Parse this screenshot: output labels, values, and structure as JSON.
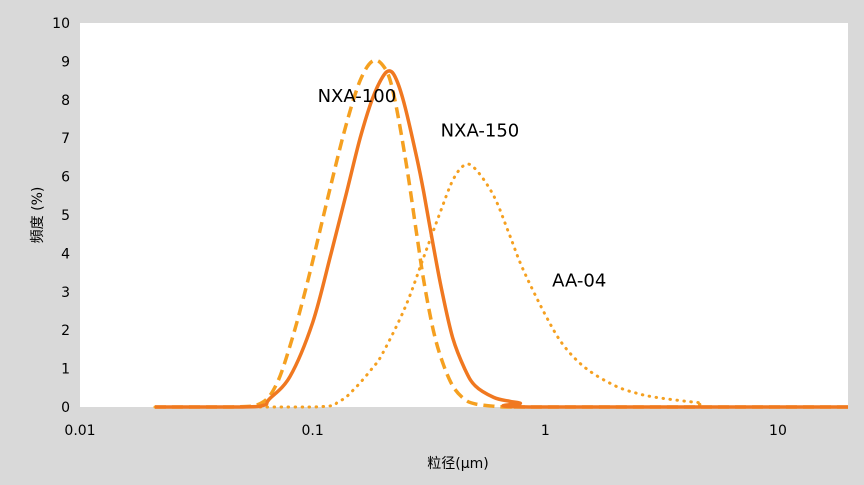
{
  "chart_data": {
    "type": "line",
    "title": "",
    "xlabel": "粒径(μm)",
    "ylabel": "頻度 (%)",
    "x_scale": "log",
    "xlim": [
      0.01,
      20
    ],
    "ylim": [
      0,
      10
    ],
    "x_ticks": [
      "0.01",
      "0.1",
      "1",
      "10"
    ],
    "y_ticks": [
      "0",
      "1",
      "2",
      "3",
      "4",
      "5",
      "6",
      "7",
      "8",
      "9",
      "10"
    ],
    "grid": false,
    "legend": "none",
    "series": [
      {
        "name": "NXA-100",
        "color": "#f5a020",
        "style": "dashed",
        "points": [
          [
            0.021,
            0
          ],
          [
            0.045,
            0
          ],
          [
            0.06,
            0.1
          ],
          [
            0.07,
            0.6
          ],
          [
            0.08,
            1.6
          ],
          [
            0.09,
            2.7
          ],
          [
            0.1,
            3.8
          ],
          [
            0.12,
            5.8
          ],
          [
            0.14,
            7.4
          ],
          [
            0.16,
            8.5
          ],
          [
            0.18,
            9.0
          ],
          [
            0.2,
            8.9
          ],
          [
            0.22,
            8.3
          ],
          [
            0.25,
            6.5
          ],
          [
            0.28,
            4.5
          ],
          [
            0.3,
            3.3
          ],
          [
            0.33,
            2.0
          ],
          [
            0.36,
            1.2
          ],
          [
            0.4,
            0.55
          ],
          [
            0.45,
            0.2
          ],
          [
            0.5,
            0.08
          ],
          [
            0.6,
            0.02
          ],
          [
            0.7,
            0
          ],
          [
            1,
            0
          ],
          [
            20,
            0
          ]
        ]
      },
      {
        "name": "NXA-150",
        "color": "#f07820",
        "style": "solid",
        "points": [
          [
            0.021,
            0
          ],
          [
            0.05,
            0
          ],
          [
            0.062,
            0.05
          ],
          [
            0.065,
            0.2
          ],
          [
            0.08,
            0.8
          ],
          [
            0.1,
            2.2
          ],
          [
            0.12,
            4.0
          ],
          [
            0.14,
            5.6
          ],
          [
            0.16,
            7.0
          ],
          [
            0.18,
            8.0
          ],
          [
            0.2,
            8.6
          ],
          [
            0.215,
            8.75
          ],
          [
            0.23,
            8.5
          ],
          [
            0.25,
            7.8
          ],
          [
            0.28,
            6.5
          ],
          [
            0.3,
            5.6
          ],
          [
            0.33,
            4.2
          ],
          [
            0.36,
            3.0
          ],
          [
            0.4,
            1.8
          ],
          [
            0.45,
            1.0
          ],
          [
            0.5,
            0.55
          ],
          [
            0.6,
            0.25
          ],
          [
            0.7,
            0.15
          ],
          [
            0.78,
            0.1
          ],
          [
            0.85,
            0
          ],
          [
            20,
            0
          ]
        ]
      },
      {
        "name": "AA-04",
        "color": "#f5a020",
        "style": "dotted",
        "points": [
          [
            0.021,
            0
          ],
          [
            0.1,
            0
          ],
          [
            0.13,
            0.15
          ],
          [
            0.15,
            0.45
          ],
          [
            0.18,
            1.0
          ],
          [
            0.2,
            1.4
          ],
          [
            0.25,
            2.6
          ],
          [
            0.3,
            3.9
          ],
          [
            0.35,
            5.0
          ],
          [
            0.4,
            5.9
          ],
          [
            0.45,
            6.3
          ],
          [
            0.5,
            6.2
          ],
          [
            0.6,
            5.5
          ],
          [
            0.7,
            4.5
          ],
          [
            0.8,
            3.6
          ],
          [
            1.0,
            2.4
          ],
          [
            1.2,
            1.6
          ],
          [
            1.5,
            1.0
          ],
          [
            2.0,
            0.55
          ],
          [
            2.5,
            0.35
          ],
          [
            3.0,
            0.25
          ],
          [
            4.0,
            0.15
          ],
          [
            4.7,
            0.1
          ],
          [
            5.0,
            0
          ],
          [
            20,
            0
          ]
        ]
      }
    ],
    "annotations": [
      {
        "text": "NXA-100",
        "x": 0.105,
        "y": 8.1
      },
      {
        "text": "NXA-150",
        "x": 0.355,
        "y": 7.2
      },
      {
        "text": "AA-04",
        "x": 1.07,
        "y": 3.3
      }
    ]
  }
}
